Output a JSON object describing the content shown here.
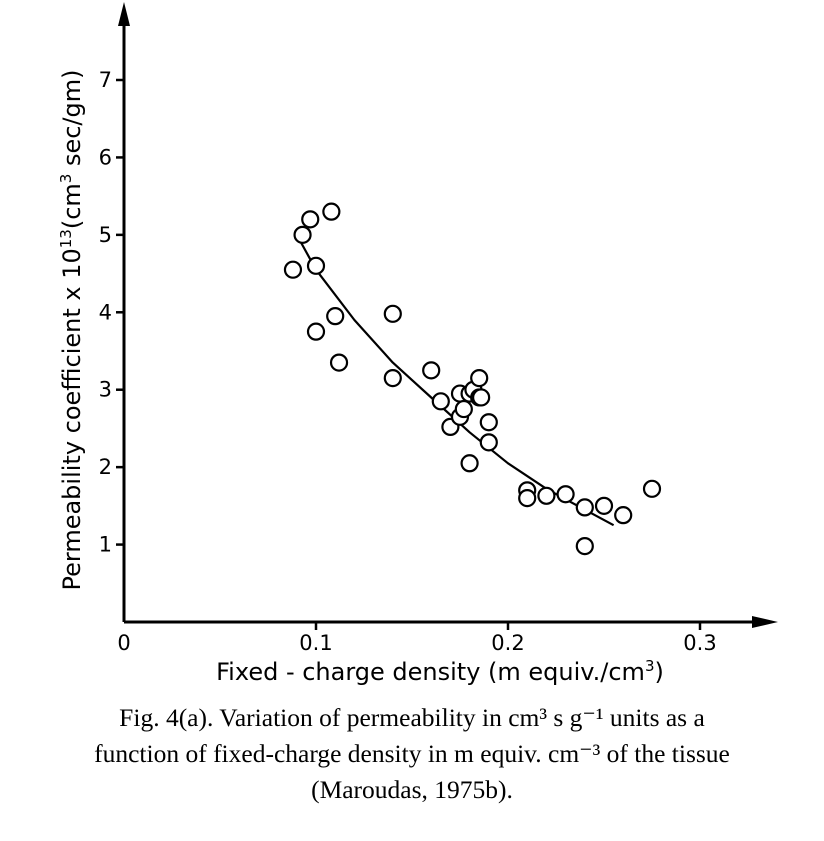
{
  "chart_data": {
    "type": "scatter",
    "xlabel": "Fixed - charge density (m equiv./cm3)",
    "ylabel": "Permeability coefficient x 10¹³(cm³ sec/gm)",
    "xlim": [
      0,
      0.35
    ],
    "ylim": [
      0,
      8
    ],
    "x_ticks": [
      "0",
      "0.1",
      "0.2",
      "0.3"
    ],
    "x_tick_values": [
      0,
      0.1,
      0.2,
      0.3
    ],
    "y_ticks": [
      "1",
      "2",
      "3",
      "4",
      "5",
      "6",
      "7"
    ],
    "y_tick_values": [
      1,
      2,
      3,
      4,
      5,
      6,
      7
    ],
    "grid": false,
    "series": [
      {
        "kind": "points",
        "marker": "open-circle",
        "x": [
          0.088,
          0.093,
          0.097,
          0.108,
          0.1,
          0.1,
          0.11,
          0.112,
          0.14,
          0.14,
          0.16,
          0.165,
          0.17,
          0.175,
          0.175,
          0.177,
          0.18,
          0.182,
          0.185,
          0.185,
          0.186,
          0.19,
          0.19,
          0.18,
          0.21,
          0.21,
          0.22,
          0.23,
          0.24,
          0.25,
          0.26,
          0.24,
          0.275
        ],
        "y": [
          4.55,
          5.0,
          5.2,
          5.3,
          4.6,
          3.75,
          3.95,
          3.35,
          3.15,
          3.98,
          3.25,
          2.85,
          2.52,
          2.65,
          2.95,
          2.75,
          2.95,
          3.0,
          3.15,
          2.9,
          2.9,
          2.58,
          2.32,
          2.05,
          1.7,
          1.6,
          1.63,
          1.65,
          1.48,
          1.5,
          1.38,
          0.98,
          1.72
        ]
      },
      {
        "kind": "fit-curve",
        "x": [
          0.09,
          0.1,
          0.12,
          0.14,
          0.16,
          0.18,
          0.2,
          0.22,
          0.24,
          0.255
        ],
        "y": [
          5.0,
          4.55,
          3.9,
          3.35,
          2.9,
          2.45,
          2.05,
          1.72,
          1.45,
          1.25
        ]
      }
    ]
  },
  "caption": {
    "line1": "Fig. 4(a). Variation of permeability in cm³ s g⁻¹ units as a",
    "line2": "function of fixed-charge density in m equiv. cm⁻³ of the tissue",
    "line3": "(Maroudas, 1975b)."
  }
}
